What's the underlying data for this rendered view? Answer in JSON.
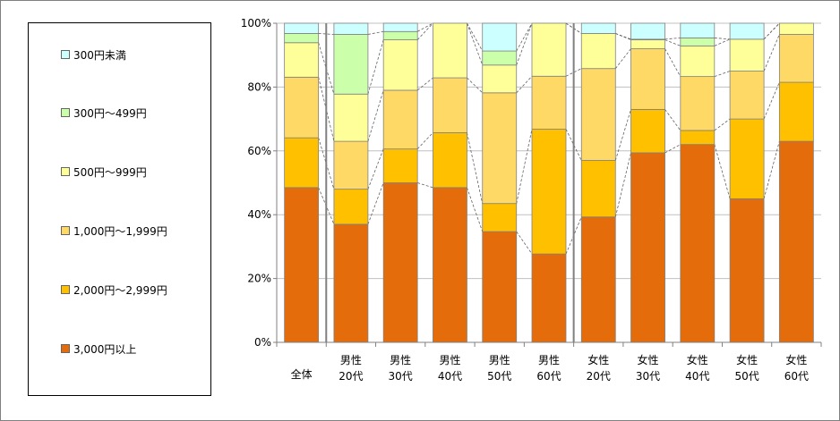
{
  "chart_data": {
    "type": "bar",
    "stacked": true,
    "categories": [
      [
        "全体"
      ],
      [
        "男性",
        "20代"
      ],
      [
        "男性",
        "30代"
      ],
      [
        "男性",
        "40代"
      ],
      [
        "男性",
        "50代"
      ],
      [
        "男性",
        "60代"
      ],
      [
        "女性",
        "20代"
      ],
      [
        "女性",
        "30代"
      ],
      [
        "女性",
        "40代"
      ],
      [
        "女性",
        "50代"
      ],
      [
        "女性",
        "60代"
      ]
    ],
    "series": [
      {
        "name": "3,000円以上",
        "color": "#E46C0A",
        "values": [
          48.5,
          37,
          50,
          48.5,
          34.7,
          27.7,
          39.3,
          59.4,
          62,
          45,
          63
        ]
      },
      {
        "name": "2,000円～2,999円",
        "color": "#FFC000",
        "values": [
          15.6,
          11,
          10.6,
          17.2,
          8.8,
          39.1,
          17.7,
          13.6,
          4.4,
          25,
          18.5
        ]
      },
      {
        "name": "1,000円～1,999円",
        "color": "#FFD966",
        "values": [
          19,
          15,
          18.4,
          17.2,
          34.7,
          16.6,
          28.8,
          19,
          16.9,
          15,
          15
        ]
      },
      {
        "name": "500円～999円",
        "color": "#FFFF99",
        "values": [
          10.8,
          14.8,
          15.8,
          17.1,
          8.7,
          16.6,
          11,
          2.8,
          9.6,
          10,
          3.5
        ]
      },
      {
        "name": "300円～499円",
        "color": "#CCFFAA",
        "values": [
          2.9,
          18.7,
          2.6,
          0,
          4.4,
          0,
          0,
          0.2,
          2.5,
          0,
          0
        ]
      },
      {
        "name": "300円未満",
        "color": "#CCFFFF",
        "values": [
          3.2,
          3.5,
          2.6,
          0,
          8.7,
          0,
          3.2,
          5,
          4.6,
          5,
          0
        ]
      }
    ],
    "legend_order": [
      "300円未満",
      "300円～499円",
      "500円～999円",
      "1,000円～1,999円",
      "2,000円～2,999円",
      "3,000円以上"
    ],
    "legend_position": "left",
    "y_ticks": [
      "0%",
      "20%",
      "40%",
      "60%",
      "80%",
      "100%"
    ],
    "ylim": [
      0,
      100
    ],
    "grid": true,
    "group_separators_after": [
      0,
      5
    ]
  }
}
